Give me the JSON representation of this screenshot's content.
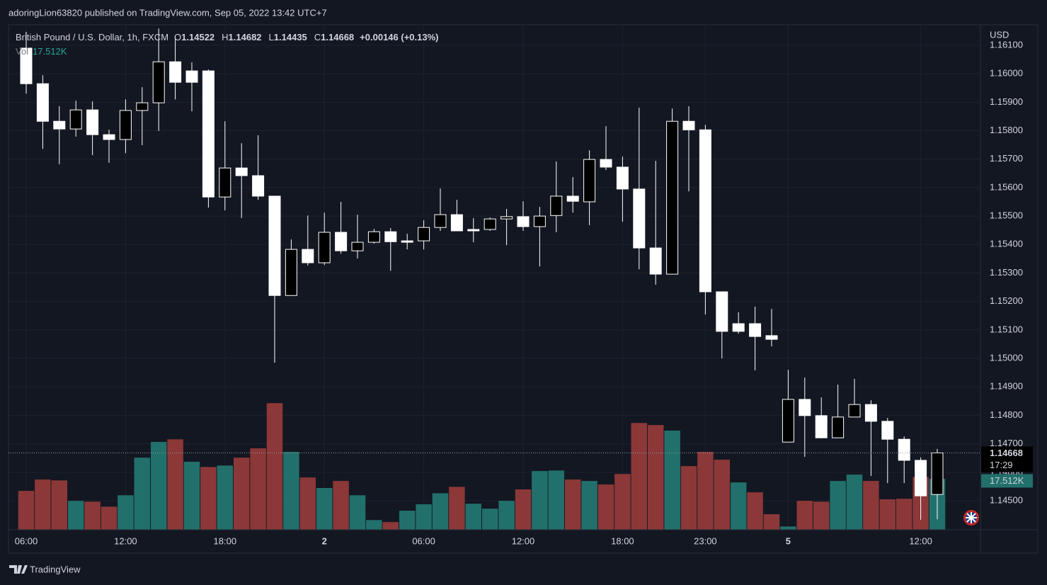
{
  "header": {
    "published": "adoringLion63820 published on TradingView.com, Sep 05, 2022 13:42 UTC+7",
    "brand": "TradingView"
  },
  "chart_data": {
    "type": "candlestick",
    "title": "British Pound / U.S. Dollar, 1h, FXCM",
    "currency": "USD",
    "ohlc_labels": [
      "O",
      "H",
      "L",
      "C"
    ],
    "change_label": "+0.00146 (+0.13%)",
    "countdown": "17:29",
    "categories": [
      "06:00",
      null,
      null,
      null,
      null,
      null,
      "12:00",
      null,
      null,
      null,
      null,
      null,
      "18:00",
      null,
      null,
      null,
      null,
      null,
      "2",
      null,
      null,
      null,
      null,
      null,
      "06:00",
      null,
      null,
      null,
      null,
      null,
      "12:00",
      null,
      null,
      null,
      null,
      null,
      "18:00",
      null,
      null,
      null,
      null,
      "23:00",
      null,
      null,
      null,
      null,
      "5",
      null,
      null,
      null,
      null,
      null,
      null,
      null,
      "12:00",
      null
    ],
    "open": [
      1.1609,
      1.15965,
      1.15833,
      1.15806,
      1.15873,
      1.15786,
      1.15769,
      1.15871,
      1.15898,
      1.16042,
      1.1601,
      1.1601,
      1.15567,
      1.15669,
      1.15642,
      1.1557,
      1.15221,
      1.15383,
      1.15336,
      1.15443,
      1.15378,
      1.15408,
      1.15445,
      1.15413,
      1.15413,
      1.1546,
      1.15505,
      1.15453,
      1.15453,
      1.1549,
      1.15498,
      1.15463,
      1.15502,
      1.1557,
      1.1555,
      1.15699,
      1.15672,
      1.15595,
      1.15388,
      1.15296,
      1.15833,
      1.15803,
      1.15234,
      1.15122,
      1.15122,
      1.1508,
      1.14706,
      1.14856,
      1.14799,
      1.14721,
      1.14794,
      1.14838,
      1.14779,
      1.14716,
      1.14642,
      1.14522
    ],
    "high": [
      1.16147,
      1.15995,
      1.15886,
      1.15905,
      1.15903,
      1.15803,
      1.1591,
      1.15953,
      1.16159,
      1.16134,
      1.1604,
      1.16015,
      1.15833,
      1.15756,
      1.15784,
      1.1557,
      1.15418,
      1.15502,
      1.15512,
      1.1555,
      1.15505,
      1.15455,
      1.15458,
      1.15438,
      1.15485,
      1.15597,
      1.15557,
      1.15493,
      1.15495,
      1.15525,
      1.15552,
      1.15532,
      1.15692,
      1.15637,
      1.15731,
      1.15816,
      1.15709,
      1.15881,
      1.15694,
      1.15878,
      1.15886,
      1.15821,
      1.15234,
      1.15162,
      1.15182,
      1.15174,
      1.1496,
      1.14933,
      1.14863,
      1.14908,
      1.14928,
      1.14853,
      1.14791,
      1.14726,
      1.14652,
      1.14682
    ],
    "low": [
      1.1593,
      1.15736,
      1.15682,
      1.15779,
      1.15714,
      1.15687,
      1.15721,
      1.15749,
      1.15799,
      1.1591,
      1.15868,
      1.1553,
      1.1552,
      1.15493,
      1.15557,
      1.14985,
      1.15221,
      1.15326,
      1.15328,
      1.15368,
      1.15351,
      1.15403,
      1.15308,
      1.15383,
      1.15383,
      1.15448,
      1.15448,
      1.15408,
      1.15448,
      1.15398,
      1.15448,
      1.15323,
      1.15443,
      1.15512,
      1.15468,
      1.15662,
      1.1548,
      1.15313,
      1.15259,
      1.15296,
      1.15587,
      1.15154,
      1.15,
      1.15087,
      1.14958,
      1.15042,
      1.14706,
      1.14654,
      1.14719,
      1.14721,
      1.14794,
      1.14587,
      1.14562,
      1.14562,
      1.14433,
      1.14435
    ],
    "close": [
      1.15965,
      1.15833,
      1.15806,
      1.15873,
      1.15786,
      1.15769,
      1.15871,
      1.15898,
      1.16042,
      1.1597,
      1.1597,
      1.15567,
      1.15669,
      1.15642,
      1.1557,
      1.15221,
      1.15383,
      1.15336,
      1.15443,
      1.15378,
      1.15408,
      1.15445,
      1.1541,
      1.15408,
      1.1546,
      1.15505,
      1.15448,
      1.15448,
      1.1549,
      1.15498,
      1.15463,
      1.155,
      1.1557,
      1.15552,
      1.15699,
      1.15672,
      1.15595,
      1.15388,
      1.15296,
      1.15833,
      1.15803,
      1.15234,
      1.15095,
      1.15095,
      1.15077,
      1.15067,
      1.14856,
      1.14799,
      1.14721,
      1.14794,
      1.14838,
      1.14779,
      1.14716,
      1.14642,
      1.14517,
      1.14668
    ],
    "up_color": "#000000",
    "down_color": "#ffffff",
    "wick_color": "#ffffff",
    "volume": {
      "name": "Vol",
      "values": [
        13400,
        17300,
        17000,
        10000,
        9700,
        8000,
        11900,
        24800,
        30200,
        31100,
        23400,
        21600,
        22100,
        24800,
        28000,
        43500,
        26800,
        18000,
        14400,
        16800,
        11900,
        3400,
        2700,
        6600,
        8800,
        12600,
        14800,
        9000,
        7300,
        10000,
        13900,
        20200,
        20400,
        17300,
        16800,
        15600,
        19200,
        36700,
        36000,
        34100,
        21900,
        26800,
        24100,
        16300,
        12900,
        5400,
        1200,
        10000,
        9700,
        16800,
        19000,
        16800,
        10500,
        10700,
        18200,
        17512
      ],
      "value_labels": [
        null,
        null,
        null,
        null,
        null,
        null,
        null,
        null,
        null,
        null,
        null,
        null,
        null,
        null,
        null,
        null,
        null,
        null,
        null,
        null,
        null,
        null,
        null,
        null,
        null,
        null,
        null,
        null,
        null,
        null,
        null,
        null,
        null,
        null,
        null,
        null,
        null,
        null,
        null,
        null,
        null,
        null,
        null,
        null,
        null,
        null,
        null,
        null,
        null,
        null,
        null,
        null,
        null,
        null,
        null,
        "17.512K"
      ],
      "colors": [
        "#8c3838",
        "#8c3838",
        "#8c3838",
        "#22706b",
        "#8c3838",
        "#8c3838",
        "#22706b",
        "#22706b",
        "#22706b",
        "#8c3838",
        "#22706b",
        "#8c3838",
        "#22706b",
        "#8c3838",
        "#8c3838",
        "#8c3838",
        "#22706b",
        "#8c3838",
        "#22706b",
        "#8c3838",
        "#22706b",
        "#22706b",
        "#8c3838",
        "#22706b",
        "#22706b",
        "#22706b",
        "#8c3838",
        "#22706b",
        "#22706b",
        "#22706b",
        "#8c3838",
        "#22706b",
        "#22706b",
        "#8c3838",
        "#22706b",
        "#8c3838",
        "#8c3838",
        "#8c3838",
        "#8c3838",
        "#22706b",
        "#8c3838",
        "#8c3838",
        "#8c3838",
        "#22706b",
        "#8c3838",
        "#8c3838",
        "#22706b",
        "#8c3838",
        "#8c3838",
        "#22706b",
        "#22706b",
        "#8c3838",
        "#8c3838",
        "#8c3838",
        "#8c3838",
        "#22706b"
      ],
      "label_color": "#26a69a"
    },
    "ylim": [
      1.14398,
      1.16172
    ],
    "yticks": [
      {
        "value": 1.145,
        "label": "1.14500"
      },
      {
        "value": 1.146,
        "label": "1.14600"
      },
      {
        "value": 1.147,
        "label": "1.14700"
      },
      {
        "value": 1.148,
        "label": "1.14800"
      },
      {
        "value": 1.149,
        "label": "1.14900"
      },
      {
        "value": 1.15,
        "label": "1.15000"
      },
      {
        "value": 1.151,
        "label": "1.15100"
      },
      {
        "value": 1.152,
        "label": "1.15200"
      },
      {
        "value": 1.153,
        "label": "1.15300"
      },
      {
        "value": 1.154,
        "label": "1.15400"
      },
      {
        "value": 1.155,
        "label": "1.15500"
      },
      {
        "value": 1.156,
        "label": "1.15600"
      },
      {
        "value": 1.157,
        "label": "1.15700"
      },
      {
        "value": 1.158,
        "label": "1.15800"
      },
      {
        "value": 1.159,
        "label": "1.15900"
      },
      {
        "value": 1.16,
        "label": "1.16000"
      },
      {
        "value": 1.161,
        "label": "1.16100"
      }
    ],
    "grid": true
  }
}
